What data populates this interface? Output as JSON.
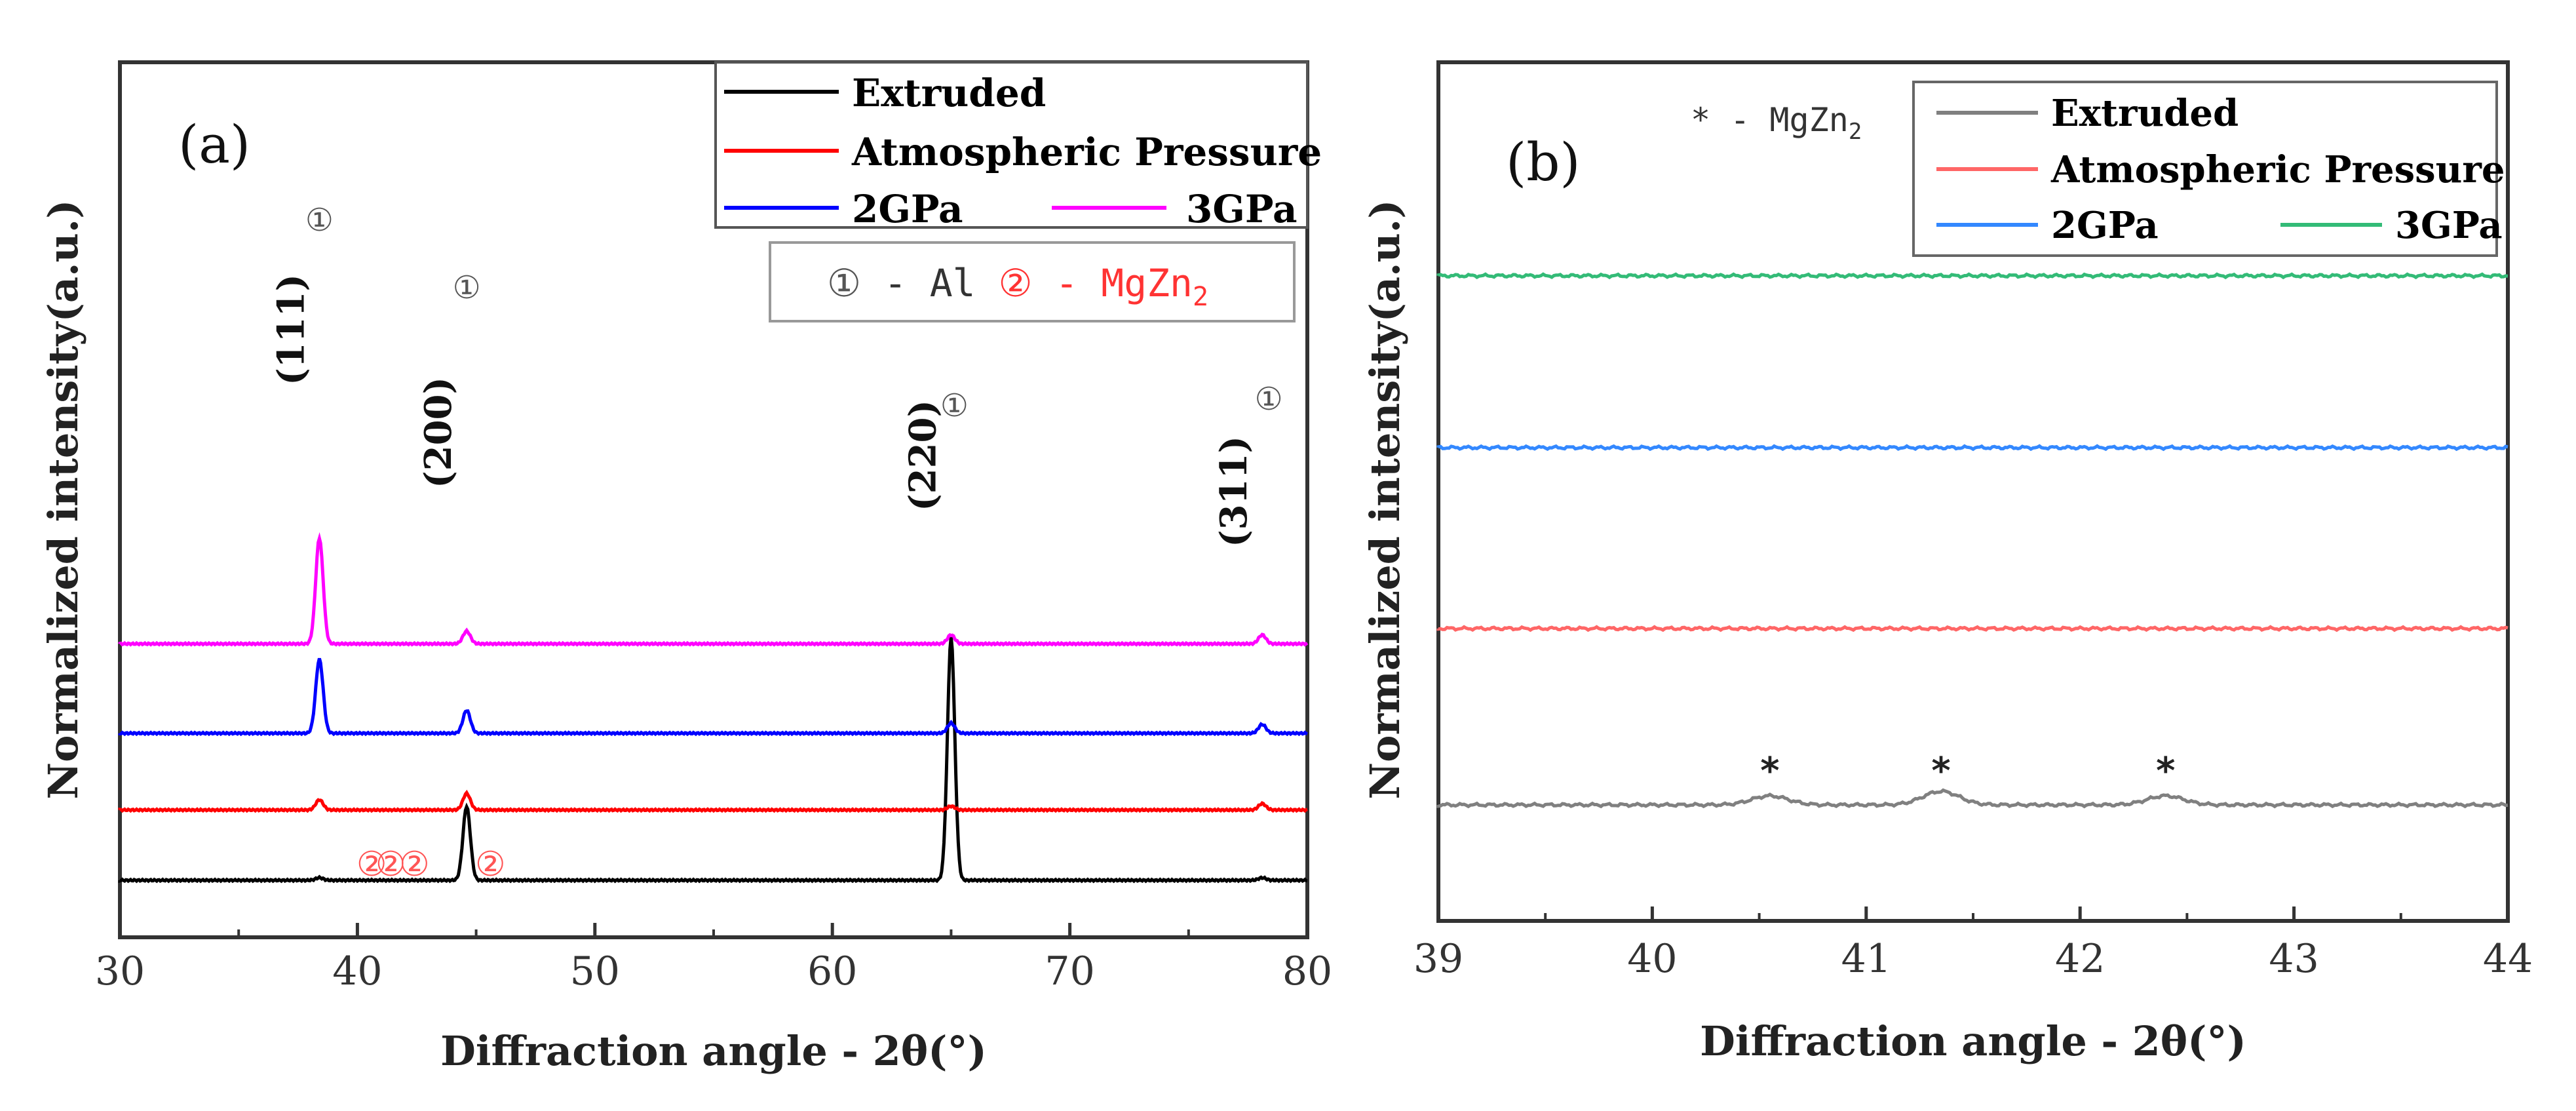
{
  "chart_data": [
    {
      "type": "line",
      "panel_label": "(a)",
      "xlabel": "Diffraction angle - 2θ(°)",
      "ylabel": "Normalized intensity(a.u.)",
      "xlim": [
        30,
        80
      ],
      "xticks": [
        "30",
        "40",
        "50",
        "60",
        "70",
        "80"
      ],
      "legend_placement": "top-right",
      "phase_key": {
        "al_symbol": "①",
        "al_text": " - Al ",
        "mgzn2_symbol": "②",
        "mgzn2_text": " - MgZn",
        "mgzn2_sub": "2"
      },
      "colors": {
        "Extruded": "#000000",
        "Atmospheric Pressure": "#ff0000",
        "2GPa": "#0000ff",
        "3GPa": "#ff00ff",
        "mgzn2_marker": "#ff5555",
        "al_marker": "#555555"
      },
      "series": [
        {
          "name": "Extruded",
          "baseline": 0.0,
          "peaks": [
            [
              38.4,
              0.02
            ],
            [
              44.6,
              0.58
            ],
            [
              65.0,
              1.9
            ],
            [
              78.1,
              0.02
            ]
          ]
        },
        {
          "name": "Atmospheric Pressure",
          "baseline": 0.55,
          "peaks": [
            [
              38.4,
              0.08
            ],
            [
              44.6,
              0.13
            ],
            [
              65.0,
              0.03
            ],
            [
              78.1,
              0.05
            ]
          ]
        },
        {
          "name": "2GPa",
          "baseline": 1.15,
          "peaks": [
            [
              38.4,
              0.58
            ],
            [
              44.6,
              0.18
            ],
            [
              65.0,
              0.08
            ],
            [
              78.1,
              0.07
            ]
          ]
        },
        {
          "name": "3GPa",
          "baseline": 1.85,
          "peaks": [
            [
              38.4,
              0.83
            ],
            [
              44.6,
              0.1
            ],
            [
              65.0,
              0.07
            ],
            [
              78.1,
              0.07
            ]
          ]
        }
      ],
      "annotations": [
        {
          "text": "(111)",
          "x": 38.4
        },
        {
          "text": "(200)",
          "x": 44.6
        },
        {
          "text": "(220)",
          "x": 65.0
        },
        {
          "text": "(311)",
          "x": 78.1
        }
      ],
      "al_markers_x": [
        38.4,
        44.6,
        65.0,
        78.1
      ],
      "mgzn2_markers_x": [
        40.6,
        41.4,
        42.4,
        45.6
      ]
    },
    {
      "type": "line",
      "panel_label": "(b)",
      "xlabel": "Diffraction angle - 2θ(°)",
      "ylabel": "Normalized intensity(a.u.)",
      "xlim": [
        39,
        44
      ],
      "xticks": [
        "39",
        "40",
        "41",
        "42",
        "43",
        "44"
      ],
      "legend_placement": "top-right",
      "star_key": {
        "symbol": "*",
        "text": " - MgZn",
        "sub": "2"
      },
      "colors": {
        "Extruded": "#808080",
        "Atmospheric Pressure": "#ff6666",
        "2GPa": "#3388ff",
        "3GPa": "#33bb77"
      },
      "series": [
        {
          "name": "Extruded",
          "baseline": 0.0,
          "peaks": [
            [
              40.55,
              0.02
            ],
            [
              41.35,
              0.03
            ],
            [
              42.4,
              0.02
            ]
          ]
        },
        {
          "name": "Atmospheric Pressure",
          "baseline": 0.39,
          "peaks": []
        },
        {
          "name": "2GPa",
          "baseline": 0.79,
          "peaks": []
        },
        {
          "name": "3GPa",
          "baseline": 1.17,
          "peaks": []
        }
      ],
      "star_markers_x": [
        40.55,
        41.35,
        42.4
      ]
    }
  ]
}
